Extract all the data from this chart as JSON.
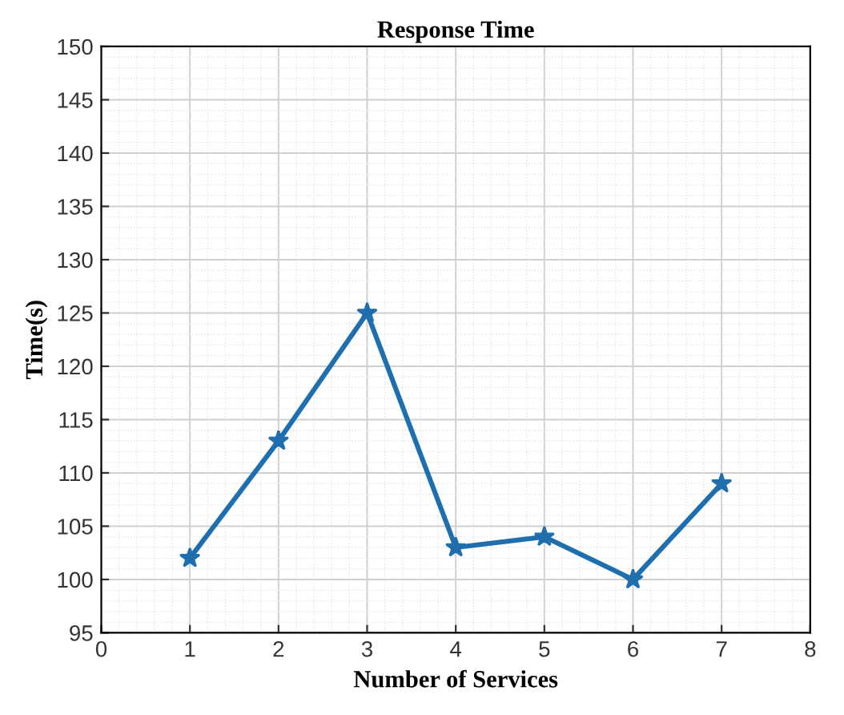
{
  "chart_data": {
    "type": "line",
    "title": "Response Time",
    "xlabel": "Number of Services",
    "ylabel": "Time(s)",
    "x": [
      1,
      2,
      3,
      4,
      5,
      6,
      7
    ],
    "series": [
      {
        "color": "#1f6faf",
        "values": [
          102,
          113,
          125,
          103,
          104,
          100,
          109
        ]
      }
    ],
    "xlim": [
      0,
      8
    ],
    "xticks": [
      0,
      1,
      2,
      3,
      4,
      5,
      6,
      7,
      8
    ],
    "ylim": [
      95,
      150
    ],
    "yticks": [
      95,
      100,
      105,
      110,
      115,
      120,
      125,
      130,
      135,
      140,
      145,
      150
    ],
    "grid": true,
    "marker": "star",
    "line_style": "solid"
  }
}
